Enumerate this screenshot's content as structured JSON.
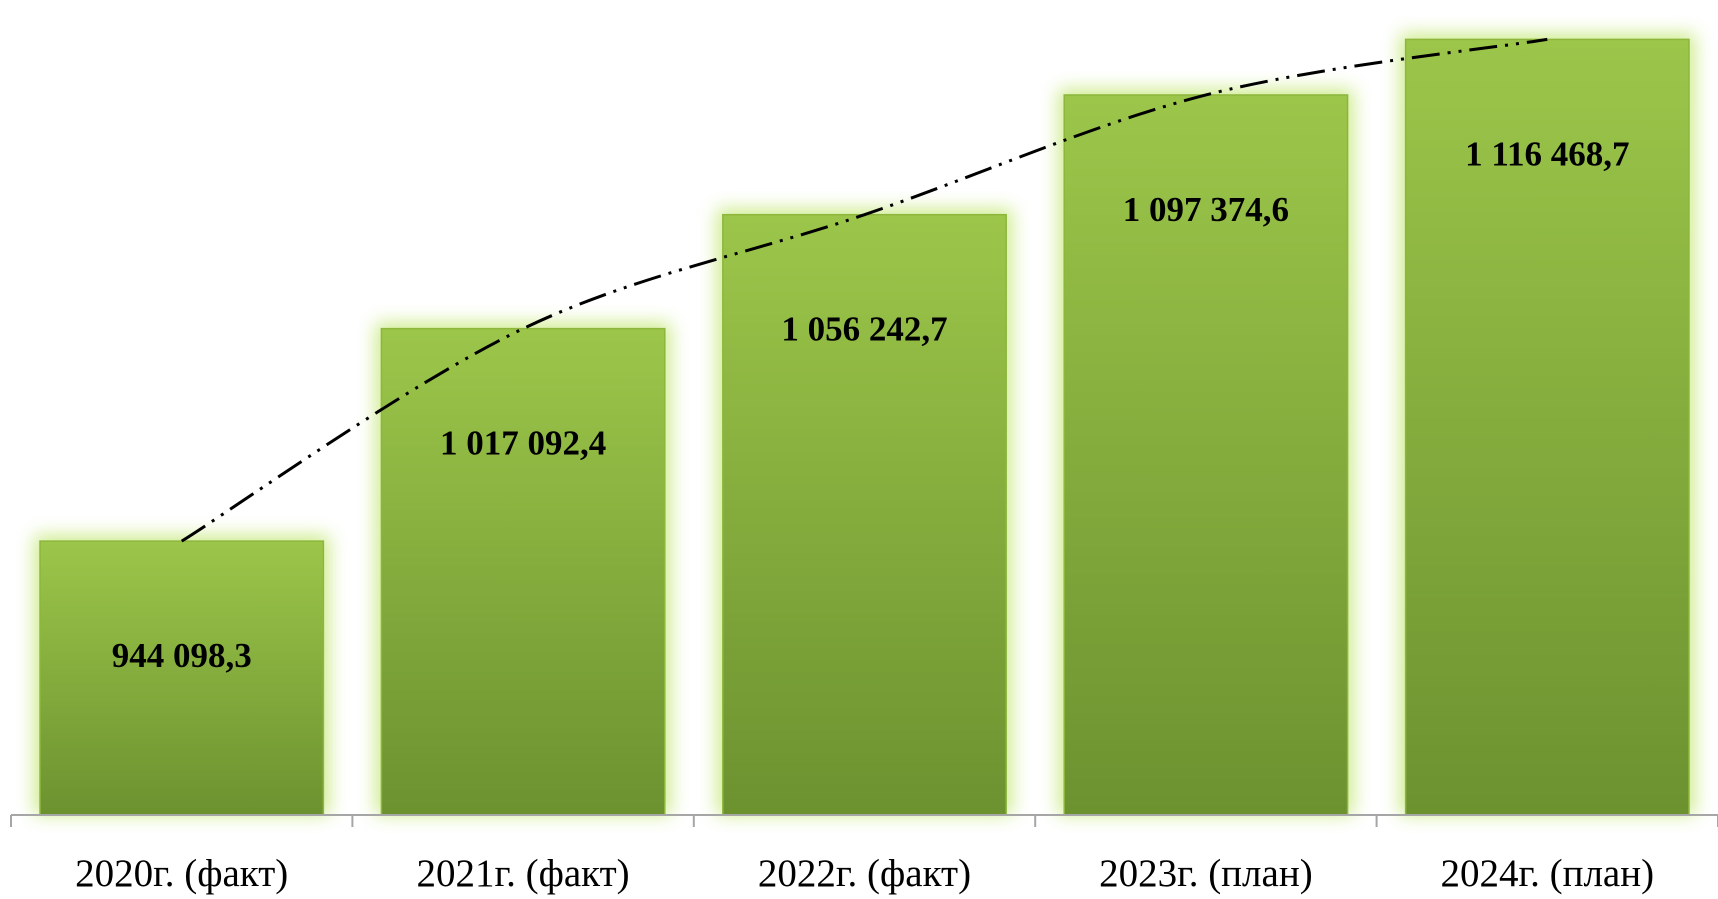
{
  "chart_data": {
    "type": "bar",
    "categories": [
      "2020г. (факт)",
      "2021г. (факт)",
      "2022г. (факт)",
      "2023г. (план)",
      "2024г. (план)"
    ],
    "values": [
      944098.3,
      1017092.4,
      1056242.7,
      1097374.6,
      1116468.7
    ],
    "value_labels": [
      "944 098,3",
      "1 017 092,4",
      "1 056 242,7",
      "1 097 374,6",
      "1 116 468,7"
    ],
    "color": "#8db63c",
    "ylim": [
      850000,
      1130000
    ]
  }
}
